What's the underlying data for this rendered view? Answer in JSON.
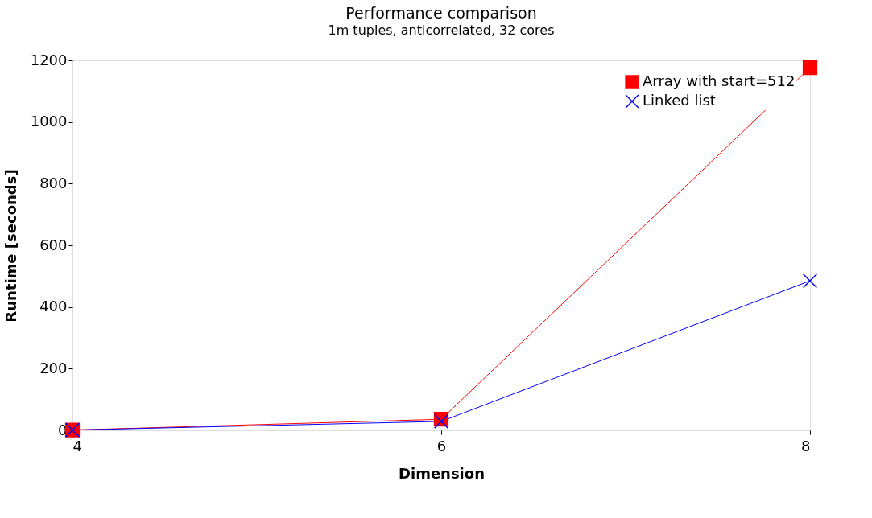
{
  "chart_data": {
    "type": "line",
    "title": "Performance comparison",
    "subtitle": "1m tuples, anticorrelated, 32 cores",
    "xlabel": "Dimension",
    "ylabel": "Runtime [seconds]",
    "x": [
      4,
      6,
      8
    ],
    "xlim": [
      4,
      8
    ],
    "xticks": [
      4,
      6,
      8
    ],
    "ylim": [
      0,
      1200
    ],
    "yticks": [
      0,
      200,
      400,
      600,
      800,
      1000,
      1200
    ],
    "series": [
      {
        "name": "Array with start=512",
        "color": "#ff0000",
        "marker": "square",
        "values": [
          1,
          36,
          1176
        ]
      },
      {
        "name": "Linked list",
        "color": "#0000ff",
        "marker": "cross",
        "values": [
          1,
          29,
          485
        ]
      }
    ],
    "grid": false,
    "legend": "top right"
  }
}
